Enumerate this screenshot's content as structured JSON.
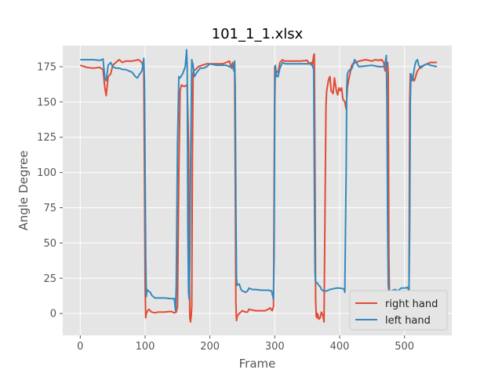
{
  "chart_data": {
    "type": "line",
    "title": "101_1_1.xlsx",
    "xlabel": "Frame",
    "ylabel": "Angle Degree",
    "xlim": [
      -27,
      573
    ],
    "ylim": [
      -15.5,
      190
    ],
    "xticks": [
      0,
      100,
      200,
      300,
      400,
      500
    ],
    "yticks": [
      0,
      25,
      50,
      75,
      100,
      125,
      150,
      175
    ],
    "grid": true,
    "legend_position": "lower-right",
    "series": [
      {
        "name": "right hand",
        "color": "#E24A33",
        "points": [
          [
            0,
            176
          ],
          [
            10,
            174.5
          ],
          [
            20,
            174
          ],
          [
            30,
            174.5
          ],
          [
            35,
            173
          ],
          [
            38,
            160
          ],
          [
            40,
            154.5
          ],
          [
            43,
            168
          ],
          [
            47,
            170
          ],
          [
            50,
            176
          ],
          [
            55,
            178
          ],
          [
            60,
            180
          ],
          [
            65,
            178
          ],
          [
            70,
            179
          ],
          [
            80,
            179
          ],
          [
            90,
            180
          ],
          [
            95,
            178
          ],
          [
            98,
            173
          ],
          [
            99,
            100
          ],
          [
            100,
            20
          ],
          [
            101,
            -3
          ],
          [
            102,
            0
          ],
          [
            104,
            2
          ],
          [
            106,
            3
          ],
          [
            110,
            1
          ],
          [
            115,
            0.5
          ],
          [
            120,
            1
          ],
          [
            130,
            1
          ],
          [
            140,
            1.5
          ],
          [
            145,
            0.5
          ],
          [
            148,
            1
          ],
          [
            150,
            5
          ],
          [
            152,
            100
          ],
          [
            154,
            158
          ],
          [
            156,
            162
          ],
          [
            160,
            161
          ],
          [
            165,
            162
          ],
          [
            167,
            120
          ],
          [
            168,
            40
          ],
          [
            169,
            -3
          ],
          [
            170,
            -6
          ],
          [
            171,
            -2
          ],
          [
            172,
            5
          ],
          [
            173,
            110
          ],
          [
            174,
            170
          ],
          [
            175,
            172
          ],
          [
            178,
            173
          ],
          [
            182,
            175
          ],
          [
            188,
            176
          ],
          [
            195,
            177
          ],
          [
            200,
            177
          ],
          [
            210,
            177
          ],
          [
            220,
            177
          ],
          [
            225,
            178
          ],
          [
            230,
            179
          ],
          [
            233,
            174
          ],
          [
            235,
            178
          ],
          [
            236,
            175
          ],
          [
            238,
            176
          ],
          [
            239,
            100
          ],
          [
            240,
            8
          ],
          [
            241,
            -5
          ],
          [
            242,
            -2
          ],
          [
            245,
            0
          ],
          [
            250,
            2
          ],
          [
            255,
            1
          ],
          [
            258,
            1
          ],
          [
            260,
            3
          ],
          [
            270,
            2
          ],
          [
            280,
            2
          ],
          [
            285,
            2
          ],
          [
            290,
            3
          ],
          [
            293,
            4
          ],
          [
            296,
            2
          ],
          [
            298,
            5
          ],
          [
            300,
            175
          ],
          [
            302,
            172
          ],
          [
            305,
            171
          ],
          [
            308,
            178
          ],
          [
            312,
            180
          ],
          [
            315,
            179
          ],
          [
            320,
            179
          ],
          [
            330,
            179
          ],
          [
            340,
            179
          ],
          [
            350,
            179.5
          ],
          [
            353,
            177
          ],
          [
            356,
            178
          ],
          [
            358,
            176
          ],
          [
            360,
            183
          ],
          [
            361,
            184
          ],
          [
            362,
            100
          ],
          [
            363,
            10
          ],
          [
            364,
            -2
          ],
          [
            365,
            -3
          ],
          [
            366,
            0
          ],
          [
            368,
            -4
          ],
          [
            370,
            -3
          ],
          [
            372,
            1
          ],
          [
            374,
            -1
          ],
          [
            376,
            -6
          ],
          [
            378,
            100
          ],
          [
            379,
            148
          ],
          [
            380,
            158
          ],
          [
            383,
            166
          ],
          [
            385,
            168
          ],
          [
            387,
            158
          ],
          [
            390,
            156
          ],
          [
            392,
            167
          ],
          [
            395,
            158
          ],
          [
            397,
            155
          ],
          [
            399,
            160
          ],
          [
            401,
            158
          ],
          [
            403,
            160
          ],
          [
            405,
            152
          ],
          [
            408,
            150
          ],
          [
            410,
            145
          ],
          [
            412,
            160
          ],
          [
            414,
            166
          ],
          [
            416,
            170
          ],
          [
            418,
            175
          ],
          [
            420,
            177
          ],
          [
            425,
            178
          ],
          [
            430,
            179
          ],
          [
            440,
            180
          ],
          [
            450,
            179
          ],
          [
            455,
            180
          ],
          [
            460,
            179.5
          ],
          [
            465,
            180
          ],
          [
            468,
            178
          ],
          [
            470,
            172
          ],
          [
            472,
            175
          ],
          [
            474,
            178
          ],
          [
            475,
            170
          ],
          [
            476,
            40
          ],
          [
            477,
            10
          ],
          [
            478,
            3
          ],
          [
            480,
            5
          ],
          [
            485,
            3
          ],
          [
            490,
            4
          ],
          [
            495,
            5
          ],
          [
            500,
            5
          ],
          [
            505,
            4
          ],
          [
            507,
            8
          ],
          [
            508,
            150
          ],
          [
            509,
            170
          ],
          [
            512,
            168
          ],
          [
            515,
            165
          ],
          [
            520,
            172
          ],
          [
            525,
            175
          ],
          [
            530,
            176
          ],
          [
            535,
            177
          ],
          [
            540,
            178
          ],
          [
            545,
            178
          ],
          [
            550,
            178
          ]
        ]
      },
      {
        "name": "left hand",
        "color": "#348ABD",
        "points": [
          [
            0,
            180
          ],
          [
            10,
            180
          ],
          [
            20,
            180
          ],
          [
            30,
            179.5
          ],
          [
            33,
            180
          ],
          [
            35,
            180.5
          ],
          [
            36,
            176
          ],
          [
            38,
            167
          ],
          [
            40,
            165
          ],
          [
            43,
            176
          ],
          [
            47,
            178
          ],
          [
            50,
            175
          ],
          [
            55,
            174
          ],
          [
            60,
            174
          ],
          [
            65,
            173
          ],
          [
            70,
            173
          ],
          [
            80,
            171
          ],
          [
            85,
            168
          ],
          [
            88,
            167
          ],
          [
            92,
            170
          ],
          [
            95,
            172
          ],
          [
            97,
            177
          ],
          [
            98,
            181
          ],
          [
            99,
            165
          ],
          [
            100,
            100
          ],
          [
            101,
            40
          ],
          [
            102,
            12
          ],
          [
            103,
            17
          ],
          [
            105,
            16
          ],
          [
            108,
            15
          ],
          [
            110,
            13
          ],
          [
            115,
            11
          ],
          [
            120,
            11
          ],
          [
            130,
            11
          ],
          [
            140,
            10.5
          ],
          [
            145,
            10.5
          ],
          [
            147,
            2
          ],
          [
            148,
            20
          ],
          [
            150,
            120
          ],
          [
            152,
            168
          ],
          [
            154,
            167
          ],
          [
            158,
            170
          ],
          [
            162,
            175
          ],
          [
            164,
            187
          ],
          [
            165,
            175
          ],
          [
            166,
            60
          ],
          [
            167,
            15
          ],
          [
            168,
            10
          ],
          [
            169,
            40
          ],
          [
            170,
            100
          ],
          [
            172,
            180
          ],
          [
            174,
            176
          ],
          [
            176,
            168
          ],
          [
            180,
            171
          ],
          [
            185,
            174
          ],
          [
            190,
            174
          ],
          [
            195,
            175
          ],
          [
            200,
            177
          ],
          [
            210,
            176
          ],
          [
            220,
            176
          ],
          [
            225,
            176
          ],
          [
            230,
            175
          ],
          [
            232,
            176
          ],
          [
            235,
            175
          ],
          [
            237,
            172
          ],
          [
            238,
            179
          ],
          [
            239,
            160
          ],
          [
            240,
            80
          ],
          [
            241,
            25
          ],
          [
            242,
            20
          ],
          [
            245,
            21
          ],
          [
            248,
            17
          ],
          [
            250,
            16
          ],
          [
            255,
            15
          ],
          [
            258,
            16
          ],
          [
            260,
            18
          ],
          [
            265,
            17
          ],
          [
            270,
            17
          ],
          [
            280,
            16.5
          ],
          [
            290,
            16.5
          ],
          [
            295,
            16
          ],
          [
            298,
            10
          ],
          [
            299,
            40
          ],
          [
            300,
            150
          ],
          [
            301,
            176
          ],
          [
            303,
            168
          ],
          [
            305,
            168
          ],
          [
            308,
            174
          ],
          [
            312,
            178
          ],
          [
            316,
            177
          ],
          [
            320,
            177
          ],
          [
            330,
            177
          ],
          [
            340,
            177
          ],
          [
            350,
            177
          ],
          [
            355,
            177
          ],
          [
            357,
            176
          ],
          [
            358,
            176
          ],
          [
            360,
            173
          ],
          [
            361,
            100
          ],
          [
            362,
            30
          ],
          [
            363,
            22
          ],
          [
            365,
            22
          ],
          [
            368,
            20
          ],
          [
            370,
            19
          ],
          [
            372,
            17
          ],
          [
            375,
            16
          ],
          [
            380,
            16
          ],
          [
            385,
            17
          ],
          [
            390,
            17.5
          ],
          [
            395,
            18
          ],
          [
            400,
            18
          ],
          [
            405,
            17.5
          ],
          [
            407,
            17.5
          ],
          [
            408,
            15
          ],
          [
            410,
            100
          ],
          [
            411,
            160
          ],
          [
            412,
            170
          ],
          [
            414,
            172
          ],
          [
            416,
            173
          ],
          [
            418,
            173
          ],
          [
            420,
            175
          ],
          [
            423,
            180
          ],
          [
            425,
            179
          ],
          [
            428,
            176
          ],
          [
            430,
            175
          ],
          [
            440,
            175.5
          ],
          [
            450,
            176
          ],
          [
            460,
            175
          ],
          [
            465,
            175
          ],
          [
            468,
            175
          ],
          [
            470,
            176
          ],
          [
            471,
            180
          ],
          [
            472,
            183
          ],
          [
            473,
            150
          ],
          [
            474,
            60
          ],
          [
            475,
            20
          ],
          [
            476,
            15
          ],
          [
            480,
            16
          ],
          [
            485,
            17
          ],
          [
            490,
            16
          ],
          [
            495,
            18
          ],
          [
            500,
            18
          ],
          [
            505,
            18.5
          ],
          [
            507,
            16
          ],
          [
            508,
            60
          ],
          [
            509,
            150
          ],
          [
            510,
            170
          ],
          [
            512,
            165
          ],
          [
            514,
            170
          ],
          [
            516,
            176
          ],
          [
            518,
            179
          ],
          [
            520,
            180
          ],
          [
            522,
            176
          ],
          [
            525,
            174
          ],
          [
            530,
            176
          ],
          [
            535,
            177
          ],
          [
            540,
            176
          ],
          [
            545,
            175.5
          ],
          [
            550,
            175
          ]
        ]
      }
    ]
  }
}
